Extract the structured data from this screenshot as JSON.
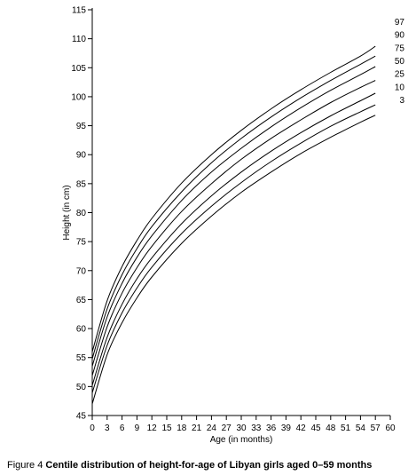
{
  "chart_data": {
    "type": "line",
    "title": "",
    "xlabel": "Age (in months)",
    "ylabel": "Height (in cm)",
    "xlim": [
      0,
      60
    ],
    "ylim": [
      45,
      115
    ],
    "xticks": [
      0,
      3,
      6,
      9,
      12,
      15,
      18,
      21,
      24,
      27,
      30,
      33,
      36,
      39,
      42,
      45,
      48,
      51,
      54,
      57,
      60
    ],
    "yticks": [
      45,
      50,
      55,
      60,
      65,
      70,
      75,
      80,
      85,
      90,
      95,
      100,
      105,
      110,
      115
    ],
    "grid": false,
    "x": [
      0,
      3,
      6,
      9,
      12,
      18,
      24,
      30,
      36,
      42,
      48,
      54,
      57
    ],
    "series": [
      {
        "name": "97",
        "values": [
          56.0,
          64.8,
          70.7,
          75.2,
          79.0,
          85.1,
          90.0,
          94.2,
          97.9,
          101.2,
          104.2,
          107.0,
          108.7
        ]
      },
      {
        "name": "90",
        "values": [
          54.8,
          63.4,
          69.3,
          73.8,
          77.6,
          83.6,
          88.6,
          92.8,
          96.5,
          99.8,
          102.8,
          105.6,
          107.0
        ]
      },
      {
        "name": "75",
        "values": [
          53.5,
          62.0,
          67.8,
          72.3,
          76.0,
          82.1,
          87.0,
          91.1,
          94.8,
          98.1,
          101.1,
          103.8,
          105.2
        ]
      },
      {
        "name": "50",
        "values": [
          51.9,
          60.3,
          66.1,
          70.5,
          74.2,
          80.2,
          85.0,
          89.2,
          92.8,
          96.0,
          99.0,
          101.6,
          102.8
        ]
      },
      {
        "name": "25",
        "values": [
          50.2,
          58.5,
          64.2,
          68.6,
          72.2,
          78.1,
          82.9,
          87.0,
          90.6,
          93.8,
          96.7,
          99.3,
          100.6
        ]
      },
      {
        "name": "10",
        "values": [
          48.9,
          57.1,
          62.7,
          67.0,
          70.6,
          76.4,
          81.1,
          85.2,
          88.8,
          92.0,
          94.9,
          97.4,
          98.6
        ]
      },
      {
        "name": "3",
        "values": [
          47.0,
          55.5,
          61.0,
          65.3,
          68.9,
          74.7,
          79.4,
          83.5,
          87.0,
          90.2,
          93.0,
          95.6,
          96.8
        ]
      }
    ]
  },
  "caption": {
    "prefix": "Figure 4 ",
    "text": "Centile distribution of height-for-age of Libyan girls aged 0–59 months"
  }
}
